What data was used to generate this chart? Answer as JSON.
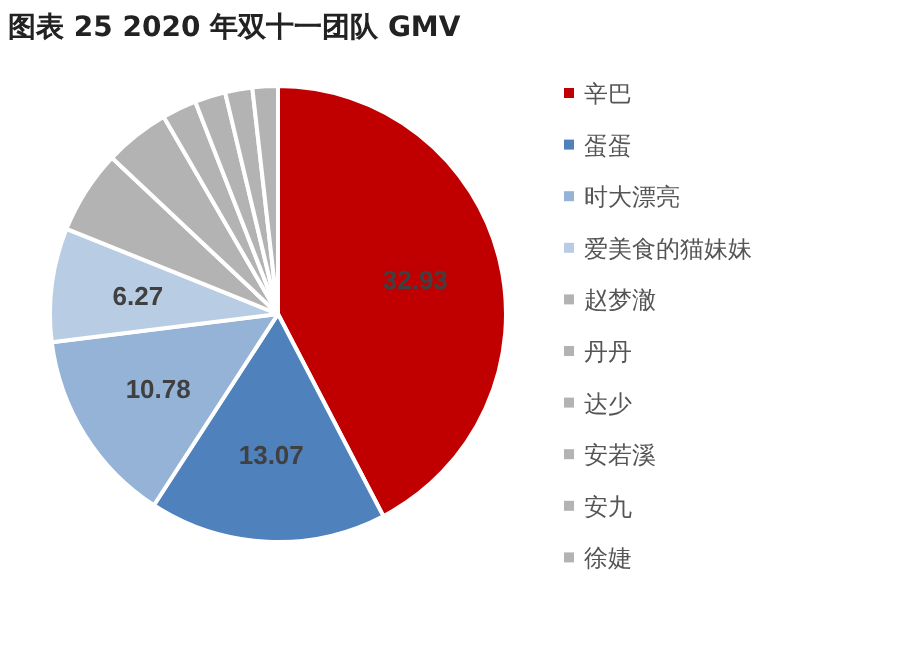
{
  "chart_data": {
    "type": "pie",
    "title": "图表 25 2020 年双十一团队 GMV",
    "categories": [
      "辛巴",
      "蛋蛋",
      "时大漂亮",
      "爱美食的猫妹妹",
      "赵梦澈",
      "丹丹",
      "达少",
      "安若溪",
      "安九",
      "徐婕"
    ],
    "values": [
      32.93,
      13.07,
      10.78,
      6.27,
      4.6,
      3.6,
      1.9,
      1.7,
      1.5,
      1.4
    ],
    "colors": [
      "#c00000",
      "#4f81bd",
      "#95b3d7",
      "#b8cce4",
      "#b3b3b3",
      "#b3b3b3",
      "#b3b3b3",
      "#b3b3b3",
      "#b3b3b3",
      "#b3b3b3"
    ],
    "value_labels": [
      "32.93",
      "13.07",
      "10.78",
      "6.27",
      null,
      null,
      null,
      null,
      null,
      null
    ],
    "legend": "right"
  }
}
